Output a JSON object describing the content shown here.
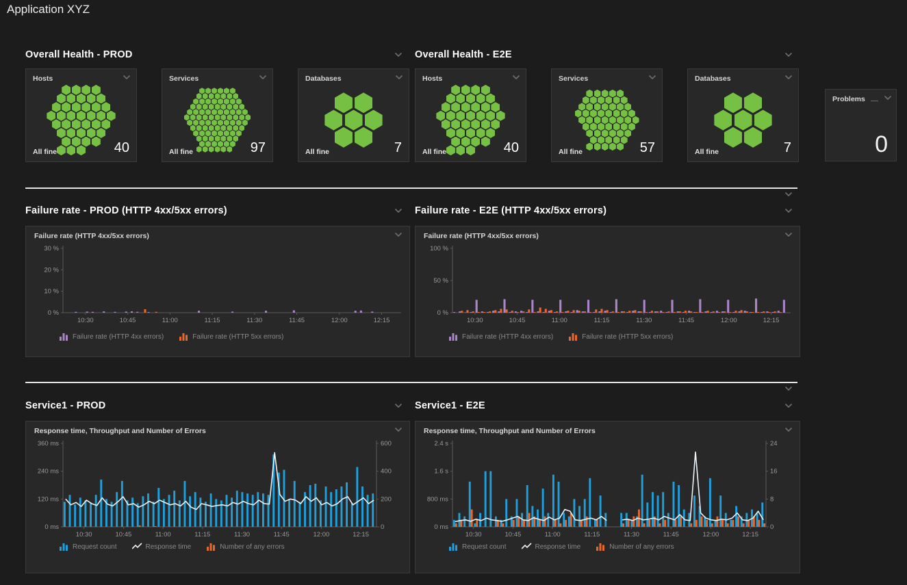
{
  "page": {
    "title": "Application XYZ"
  },
  "colors": {
    "green": "#76c043",
    "blue": "#1f9fdb",
    "orange": "#e8682c",
    "purple": "#ab84c9",
    "line": "#edf3f8",
    "divider": "#e4e4e4"
  },
  "sections": {
    "health": [
      {
        "title": "Overall Health - PROD",
        "tiles": [
          {
            "label": "Hosts",
            "status": "All fine",
            "count": "40",
            "hexes": 40,
            "hex_size": 13
          },
          {
            "label": "Services",
            "status": "All fine",
            "count": "97",
            "hexes": 97,
            "hex_size": 8
          },
          {
            "label": "Databases",
            "status": "All fine",
            "count": "7",
            "hexes": 7,
            "hex_size": 26
          }
        ]
      },
      {
        "title": "Overall Health - E2E",
        "tiles": [
          {
            "label": "Hosts",
            "status": "All fine",
            "count": "40",
            "hexes": 40,
            "hex_size": 13
          },
          {
            "label": "Services",
            "status": "All fine",
            "count": "57",
            "hexes": 57,
            "hex_size": 10
          },
          {
            "label": "Databases",
            "status": "All fine",
            "count": "7",
            "hexes": 7,
            "hex_size": 26
          }
        ]
      }
    ],
    "problems": {
      "label": "Problems",
      "count": "0"
    },
    "charts_row1": [
      {
        "title": "Failure rate - PROD (HTTP 4xx/5xx errors)"
      },
      {
        "title": "Failure rate - E2E (HTTP 4xx/5xx errors)"
      }
    ],
    "charts_row2": [
      {
        "title": "Service1 - PROD"
      },
      {
        "title": "Service1 - E2E"
      }
    ]
  },
  "chart_data": [
    {
      "type": "bar",
      "title": "Failure rate (HTTP 4xx/5xx errors)",
      "y_left": {
        "labels": [
          "0 %",
          "10 %",
          "20 %",
          "30 %"
        ],
        "top": 30
      },
      "y_right": null,
      "x_ticks": [
        {
          "f": 0.067,
          "label": "10:30"
        },
        {
          "f": 0.193,
          "label": "10:45"
        },
        {
          "f": 0.319,
          "label": "11:00"
        },
        {
          "f": 0.445,
          "label": "11:15"
        },
        {
          "f": 0.571,
          "label": "11:30"
        },
        {
          "f": 0.697,
          "label": "11:45"
        },
        {
          "f": 0.824,
          "label": "12:00"
        },
        {
          "f": 0.95,
          "label": "12:15"
        }
      ],
      "series": [
        {
          "name": "Failure rate (HTTP 4xx errors)",
          "type": "bar",
          "axis": "left",
          "color": "purple",
          "values": [
            0,
            0,
            0.4,
            0,
            0.5,
            0.4,
            0,
            0.6,
            0,
            0.4,
            0,
            0.5,
            0.6,
            0.4,
            0,
            0.3,
            0,
            0,
            0,
            0,
            0,
            0,
            0,
            0,
            0.9,
            0,
            0,
            0,
            0,
            0,
            0.5,
            0,
            0,
            0,
            0,
            0,
            0.9,
            0,
            0,
            0,
            0,
            1.1,
            0,
            0,
            0,
            0,
            0,
            0,
            0,
            0,
            0,
            0,
            0.9,
            1.0,
            0,
            0.5,
            0,
            0,
            0,
            0
          ]
        },
        {
          "name": "Failure rate (HTTP 5xx errors)",
          "type": "bar",
          "axis": "left",
          "color": "orange",
          "values": [
            0,
            0,
            0,
            0,
            0,
            0,
            0,
            0,
            0,
            0,
            0,
            0,
            0,
            0,
            1.6,
            0,
            0.4,
            0,
            0,
            0,
            0,
            0,
            0,
            0,
            0,
            0,
            0,
            0,
            0,
            0,
            0,
            0,
            0,
            0,
            0,
            0,
            0,
            0,
            0,
            0,
            0,
            0,
            0,
            0,
            0,
            0,
            0,
            0,
            0,
            0,
            0,
            0,
            0,
            0,
            0,
            0,
            0,
            0,
            0,
            0
          ]
        }
      ],
      "legend": [
        {
          "icon": "bars",
          "color": "purple",
          "label": "Failure rate (HTTP 4xx errors)"
        },
        {
          "icon": "bars",
          "color": "orange",
          "label": "Failure rate (HTTP 5xx errors)"
        }
      ]
    },
    {
      "type": "bar",
      "title": "Failure rate  (HTTP 4xx/5xx errors)",
      "y_left": {
        "labels": [
          "0 %",
          "50 %",
          "100 %"
        ],
        "top": 100
      },
      "y_right": null,
      "x_ticks": [
        {
          "f": 0.067,
          "label": "10:30"
        },
        {
          "f": 0.193,
          "label": "10:45"
        },
        {
          "f": 0.319,
          "label": "11:00"
        },
        {
          "f": 0.445,
          "label": "11:15"
        },
        {
          "f": 0.571,
          "label": "11:30"
        },
        {
          "f": 0.697,
          "label": "11:45"
        },
        {
          "f": 0.824,
          "label": "12:00"
        },
        {
          "f": 0.95,
          "label": "12:15"
        }
      ],
      "series": [
        {
          "name": "Failure rate (HTTP 4xx errors)",
          "type": "bar",
          "axis": "left",
          "color": "purple",
          "values": [
            1,
            2,
            0.5,
            1,
            20,
            2,
            1,
            3,
            2,
            21,
            1,
            2,
            3,
            1,
            20,
            2,
            1,
            3,
            1,
            20,
            2,
            1,
            4,
            2,
            20,
            1,
            2,
            3,
            1,
            21,
            2,
            1,
            3,
            2,
            20,
            1,
            2,
            3,
            1,
            20,
            2,
            1,
            3,
            1,
            21,
            2,
            1,
            3,
            2,
            20,
            1,
            2,
            3,
            1,
            22,
            1,
            2,
            1,
            3,
            20
          ]
        },
        {
          "name": "Failure rate (HTTP 5xx errors)",
          "type": "bar",
          "axis": "left",
          "color": "orange",
          "values": [
            0,
            3,
            4,
            2,
            1,
            1,
            2,
            4,
            6,
            5,
            3,
            1,
            2,
            5,
            1,
            8,
            6,
            4,
            2,
            1,
            3,
            4,
            3,
            2,
            1,
            5,
            6,
            4,
            2,
            1,
            2,
            3,
            4,
            2,
            1,
            3,
            2,
            1,
            2,
            1,
            2,
            3,
            2,
            1,
            1,
            3,
            2,
            1,
            2,
            1,
            3,
            4,
            2,
            1,
            1,
            2,
            1,
            2,
            1,
            0
          ]
        }
      ],
      "legend": [
        {
          "icon": "bars",
          "color": "purple",
          "label": "Failure rate (HTTP 4xx errors)"
        },
        {
          "icon": "bars",
          "color": "orange",
          "label": "Failure rate (HTTP 5xx errors)"
        }
      ]
    },
    {
      "type": "mixed",
      "title": "Response time, Throughput and Number of Errors",
      "y_left": {
        "labels": [
          "0 ms",
          "120 ms",
          "240 ms",
          "360 ms"
        ],
        "top": 360
      },
      "y_right": {
        "labels": [
          "0",
          "200",
          "400",
          "600"
        ],
        "top": 600
      },
      "x_ticks": [
        {
          "f": 0.067,
          "label": "10:30"
        },
        {
          "f": 0.193,
          "label": "10:45"
        },
        {
          "f": 0.319,
          "label": "11:00"
        },
        {
          "f": 0.445,
          "label": "11:15"
        },
        {
          "f": 0.571,
          "label": "11:30"
        },
        {
          "f": 0.697,
          "label": "11:45"
        },
        {
          "f": 0.824,
          "label": "12:00"
        },
        {
          "f": 0.95,
          "label": "12:15"
        }
      ],
      "series": [
        {
          "name": "Request count",
          "type": "bar",
          "axis": "right",
          "color": "blue",
          "values": [
            180,
            230,
            160,
            210,
            190,
            170,
            230,
            340,
            200,
            180,
            250,
            330,
            190,
            210,
            170,
            220,
            240,
            180,
            280,
            200,
            230,
            260,
            190,
            330,
            220,
            250,
            210,
            180,
            240,
            200,
            190,
            230,
            210,
            260,
            250,
            240,
            230,
            250,
            240,
            230,
            520,
            390,
            410,
            200,
            330,
            180,
            250,
            300,
            310,
            190,
            290,
            250,
            270,
            290,
            320,
            170,
            430,
            290,
            230,
            240
          ]
        },
        {
          "name": "Number of any errors",
          "type": "bar",
          "axis": "right",
          "color": "orange",
          "values": [
            0,
            0,
            0,
            0,
            0,
            0,
            0,
            0,
            0,
            0,
            0,
            0,
            0,
            0,
            10,
            0,
            0,
            5,
            0,
            0,
            0,
            0,
            0,
            0,
            0,
            0,
            0,
            0,
            0,
            0,
            0,
            0,
            0,
            0,
            0,
            0,
            0,
            0,
            0,
            0,
            0,
            0,
            0,
            0,
            0,
            0,
            0,
            0,
            0,
            0,
            0,
            0,
            0,
            0,
            0,
            0,
            0,
            0,
            0,
            0
          ]
        },
        {
          "name": "Response time",
          "type": "line",
          "axis": "left",
          "color": "line",
          "values": [
            120,
            95,
            105,
            88,
            115,
            100,
            92,
            125,
            98,
            90,
            108,
            130,
            95,
            100,
            85,
            95,
            110,
            100,
            115,
            105,
            95,
            100,
            90,
            110,
            85,
            75,
            100,
            95,
            88,
            92,
            95,
            90,
            105,
            98,
            110,
            100,
            95,
            115,
            100,
            98,
            320,
            140,
            110,
            120,
            115,
            100,
            130,
            110,
            125,
            95,
            105,
            90,
            100,
            120,
            130,
            95,
            110,
            125,
            100,
            115
          ]
        }
      ],
      "legend": [
        {
          "icon": "bars",
          "color": "blue",
          "label": "Request count"
        },
        {
          "icon": "line",
          "color": "line",
          "label": "Response time"
        },
        {
          "icon": "bars",
          "color": "orange",
          "label": "Number of any errors"
        }
      ]
    },
    {
      "type": "mixed",
      "title": "Response time, Throughput and Number of Errors",
      "y_left": {
        "labels": [
          "0 ms",
          "800 ms",
          "1.6 s",
          "2.4 s"
        ],
        "top": 2400
      },
      "y_right": {
        "labels": [
          "0",
          "8",
          "16",
          "24"
        ],
        "top": 24
      },
      "x_ticks": [
        {
          "f": 0.067,
          "label": "10:30"
        },
        {
          "f": 0.193,
          "label": "10:45"
        },
        {
          "f": 0.319,
          "label": "11:00"
        },
        {
          "f": 0.445,
          "label": "11:15"
        },
        {
          "f": 0.571,
          "label": "11:30"
        },
        {
          "f": 0.697,
          "label": "11:45"
        },
        {
          "f": 0.824,
          "label": "12:00"
        },
        {
          "f": 0.95,
          "label": "12:15"
        }
      ],
      "series": [
        {
          "name": "Request count",
          "type": "bar",
          "axis": "right",
          "color": "blue",
          "values": [
            2,
            4,
            3,
            13,
            1,
            4,
            16,
            16,
            3,
            2,
            8,
            3,
            8,
            4,
            12,
            6,
            5,
            11,
            4,
            15,
            13,
            4,
            3,
            8,
            6,
            8,
            14,
            2,
            9,
            4,
            0,
            0,
            4,
            4,
            2,
            3,
            15,
            7,
            10,
            9,
            10,
            4,
            13,
            12,
            5,
            4,
            9,
            6,
            3,
            14,
            2,
            9,
            4,
            2,
            6,
            3,
            4,
            5,
            4,
            7
          ]
        },
        {
          "name": "Number of any errors",
          "type": "bar",
          "axis": "right",
          "color": "orange",
          "values": [
            1,
            2,
            0,
            5,
            2,
            0,
            0,
            0,
            2,
            1,
            0,
            2,
            3,
            2,
            4,
            3,
            2,
            3,
            0,
            2,
            1,
            2,
            4,
            0,
            2,
            3,
            0,
            2,
            0,
            0,
            0,
            0,
            1,
            2,
            3,
            5,
            1,
            2,
            3,
            1,
            2,
            0,
            2,
            3,
            0,
            1,
            2,
            3,
            2,
            1,
            3,
            2,
            1,
            2,
            3,
            1,
            2,
            3,
            2,
            1
          ]
        },
        {
          "name": "Response time",
          "type": "line",
          "axis": "left",
          "color": "line",
          "values": [
            150,
            180,
            200,
            160,
            220,
            180,
            250,
            200,
            180,
            160,
            200,
            250,
            300,
            200,
            180,
            260,
            220,
            180,
            280,
            200,
            250,
            500,
            450,
            200,
            180,
            220,
            250,
            200,
            300,
            180,
            null,
            null,
            200,
            220,
            180,
            250,
            200,
            220,
            250,
            200,
            300,
            250,
            200,
            350,
            200,
            180,
            2150,
            400,
            250,
            200,
            180,
            220,
            200,
            250,
            400,
            200,
            180,
            250,
            450,
            200
          ]
        }
      ],
      "legend": [
        {
          "icon": "bars",
          "color": "blue",
          "label": "Request count"
        },
        {
          "icon": "line",
          "color": "line",
          "label": "Response time"
        },
        {
          "icon": "bars",
          "color": "orange",
          "label": "Number of any errors"
        }
      ]
    }
  ]
}
